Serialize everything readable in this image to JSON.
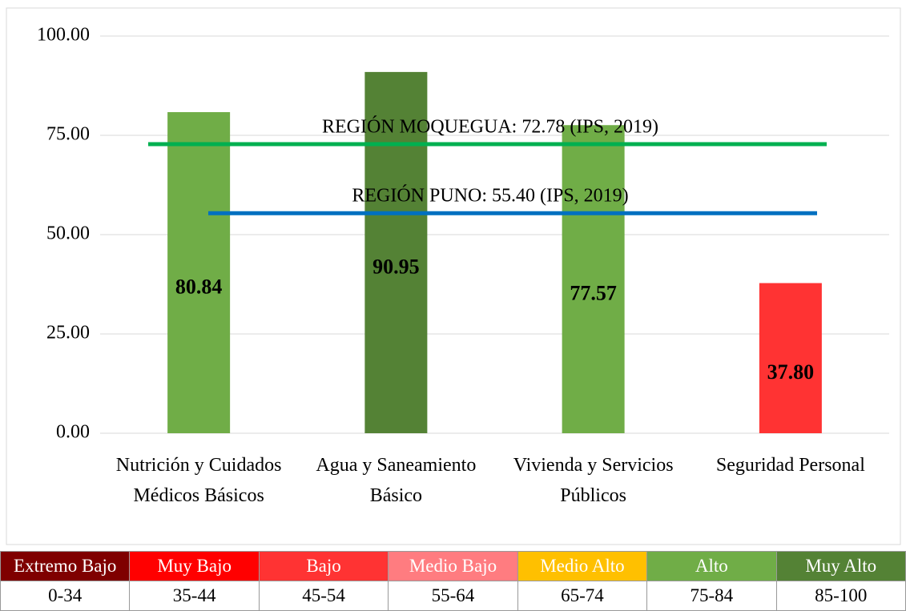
{
  "chart_data": {
    "type": "bar",
    "categories": [
      "Nutrición y Cuidados Médicos Básicos",
      "Agua y Saneamiento Básico",
      "Vivienda y Servicios Públicos",
      "Seguridad Personal"
    ],
    "values": [
      80.84,
      90.95,
      77.57,
      37.8
    ],
    "value_labels": [
      "80.84",
      "90.95",
      "77.57",
      "37.80"
    ],
    "colors": [
      "#70ad47",
      "#548235",
      "#70ad47",
      "#ff3333"
    ],
    "ylim": [
      0,
      100
    ],
    "yticks": [
      {
        "value": 0,
        "label": "0.00"
      },
      {
        "value": 25,
        "label": "25.00"
      },
      {
        "value": 50,
        "label": "50.00"
      },
      {
        "value": 75,
        "label": "75.00"
      },
      {
        "value": 100,
        "label": "100.00"
      }
    ],
    "grid": true,
    "reference_lines": [
      {
        "label": "REGIÓN MOQUEGUA: 72.78 (IPS, 2019)",
        "value": 72.78,
        "color": "#00b050"
      },
      {
        "label": "REGIÓN PUNO: 55.40 (IPS, 2019)",
        "value": 55.4,
        "color": "#0070c0"
      }
    ]
  },
  "legend_table": {
    "levels": [
      {
        "label": "Extremo Bajo",
        "range": "0-34",
        "color": "#7f0000"
      },
      {
        "label": "Muy Bajo",
        "range": "35-44",
        "color": "#ff0000"
      },
      {
        "label": "Bajo",
        "range": "45-54",
        "color": "#ff3333"
      },
      {
        "label": "Medio Bajo",
        "range": "55-64",
        "color": "#ff7c80"
      },
      {
        "label": "Medio Alto",
        "range": "65-74",
        "color": "#ffc000"
      },
      {
        "label": "Alto",
        "range": "75-84",
        "color": "#70ad47"
      },
      {
        "label": "Muy Alto",
        "range": "85-100",
        "color": "#548235"
      }
    ]
  }
}
